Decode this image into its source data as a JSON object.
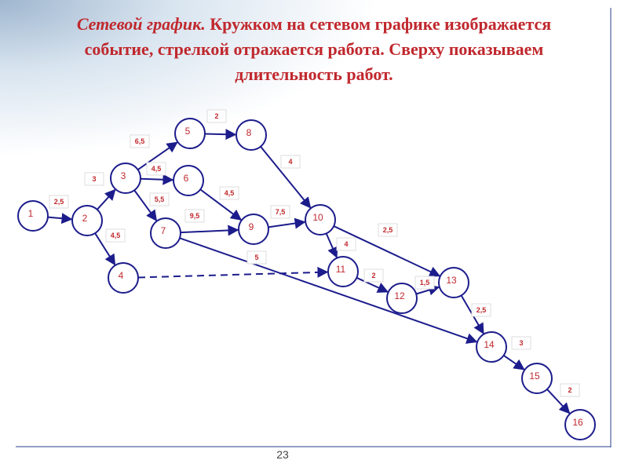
{
  "title": {
    "lead": "Сетевой график.",
    "lines": [
      "Кружком на сетевом графике изображается",
      "событие, стрелкой отражается работа. Сверху показываем",
      "длительность работ."
    ]
  },
  "nodes": [
    {
      "label": "1"
    },
    {
      "label": "2"
    },
    {
      "label": "3"
    },
    {
      "label": "4"
    },
    {
      "label": "5"
    },
    {
      "label": "6"
    },
    {
      "label": "7"
    },
    {
      "label": "8"
    },
    {
      "label": "9"
    },
    {
      "label": "10"
    },
    {
      "label": "11"
    },
    {
      "label": "12"
    },
    {
      "label": "13"
    },
    {
      "label": "14"
    },
    {
      "label": "15"
    },
    {
      "label": "16"
    }
  ],
  "edges": [
    {
      "label": "2,5"
    },
    {
      "label": "3"
    },
    {
      "label": "4,5"
    },
    {
      "label": "6,5"
    },
    {
      "label": "4,5"
    },
    {
      "label": "5,5"
    },
    {
      "label": "2"
    },
    {
      "label": "4,5"
    },
    {
      "label": "9,5"
    },
    {
      "label": "5"
    },
    {
      "label": "4"
    },
    {
      "label": "7,5"
    },
    {
      "label": "4"
    },
    {
      "label": "2,5"
    },
    {
      "label": "2"
    },
    {
      "label": "1,5"
    },
    {
      "label": "2,5"
    },
    {
      "label": "3"
    },
    {
      "label": "2"
    }
  ],
  "footer": {
    "page": "23"
  }
}
